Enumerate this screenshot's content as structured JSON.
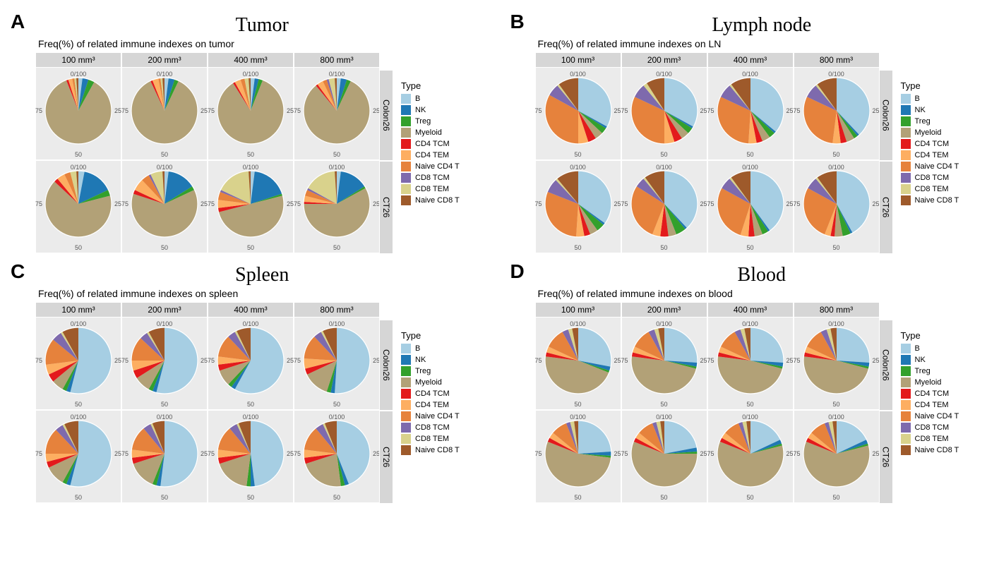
{
  "categories": [
    {
      "key": "B",
      "label": "B",
      "color": "#a6cee3"
    },
    {
      "key": "NK",
      "label": "NK",
      "color": "#1f78b4"
    },
    {
      "key": "Treg",
      "label": "Treg",
      "color": "#33a02c"
    },
    {
      "key": "Myeloid",
      "label": "Myeloid",
      "color": "#b2a177"
    },
    {
      "key": "CD4_TCM",
      "label": "CD4 TCM",
      "color": "#e31a1c"
    },
    {
      "key": "CD4_TEM",
      "label": "CD4 TEM",
      "color": "#fdae61"
    },
    {
      "key": "Naive_CD4_T",
      "label": "Naive CD4 T",
      "color": "#e6823c"
    },
    {
      "key": "CD8_TCM",
      "label": "CD8 TCM",
      "color": "#7e6aad"
    },
    {
      "key": "CD8_TEM",
      "label": "CD8 TEM",
      "color": "#d9d28c"
    },
    {
      "key": "Naive_CD8_T",
      "label": "Naive CD8 T",
      "color": "#9e5a2b"
    }
  ],
  "col_labels": [
    "100 mm³",
    "200 mm³",
    "400 mm³",
    "800 mm³"
  ],
  "row_labels": [
    "Colon26",
    "CT26"
  ],
  "axis_labels": {
    "top": "0/100",
    "right": "25",
    "bottom": "50",
    "left": "75"
  },
  "legend_title": "Type",
  "panels": [
    {
      "letter": "A",
      "title": "Tumor",
      "subtitle": "Freq(%) of related immune indexes on tumor",
      "rows": [
        [
          {
            "B": 2,
            "NK": 3,
            "Treg": 3,
            "Myeloid": 86,
            "CD4_TCM": 1,
            "CD4_TEM": 2,
            "Naive_CD4_T": 1,
            "CD8_TCM": 0,
            "CD8_TEM": 1,
            "Naive_CD8_T": 1
          },
          {
            "B": 2,
            "NK": 3,
            "Treg": 2,
            "Myeloid": 86,
            "CD4_TCM": 1,
            "CD4_TEM": 3,
            "Naive_CD4_T": 1,
            "CD8_TCM": 0,
            "CD8_TEM": 1,
            "Naive_CD8_T": 1
          },
          {
            "B": 2,
            "NK": 2,
            "Treg": 2,
            "Myeloid": 85,
            "CD4_TCM": 1,
            "CD4_TEM": 3,
            "Naive_CD4_T": 2,
            "CD8_TCM": 0,
            "CD8_TEM": 2,
            "Naive_CD8_T": 1
          },
          {
            "B": 2,
            "NK": 3,
            "Treg": 2,
            "Myeloid": 82,
            "CD4_TCM": 1,
            "CD4_TEM": 3,
            "Naive_CD4_T": 2,
            "CD8_TCM": 1,
            "CD8_TEM": 3,
            "Naive_CD8_T": 1
          }
        ],
        [
          {
            "B": 3,
            "NK": 15,
            "Treg": 3,
            "Myeloid": 66,
            "CD4_TCM": 2,
            "CD4_TEM": 4,
            "Naive_CD4_T": 3,
            "CD8_TCM": 0,
            "CD8_TEM": 3,
            "Naive_CD8_T": 1
          },
          {
            "B": 2,
            "NK": 14,
            "Treg": 2,
            "Myeloid": 62,
            "CD4_TCM": 2,
            "CD4_TEM": 6,
            "Naive_CD4_T": 4,
            "CD8_TCM": 1,
            "CD8_TEM": 6,
            "Naive_CD8_T": 1
          },
          {
            "B": 2,
            "NK": 18,
            "Treg": 1,
            "Myeloid": 50,
            "CD4_TCM": 2,
            "CD4_TEM": 4,
            "Naive_CD4_T": 4,
            "CD8_TCM": 1,
            "CD8_TEM": 17,
            "Naive_CD8_T": 1
          },
          {
            "B": 2,
            "NK": 14,
            "Treg": 1,
            "Myeloid": 58,
            "CD4_TCM": 1,
            "CD4_TEM": 3,
            "Naive_CD4_T": 3,
            "CD8_TCM": 1,
            "CD8_TEM": 16,
            "Naive_CD8_T": 1
          }
        ]
      ]
    },
    {
      "letter": "B",
      "title": "Lymph node",
      "subtitle": "Freq(%) of related immune indexes on LN",
      "rows": [
        [
          {
            "B": 33,
            "NK": 1,
            "Treg": 3,
            "Myeloid": 4,
            "CD4_TCM": 4,
            "CD4_TEM": 5,
            "Naive_CD4_T": 33,
            "CD8_TCM": 6,
            "CD8_TEM": 1,
            "Naive_CD8_T": 10
          },
          {
            "B": 33,
            "NK": 1,
            "Treg": 3,
            "Myeloid": 4,
            "CD4_TCM": 4,
            "CD4_TEM": 5,
            "Naive_CD4_T": 32,
            "CD8_TCM": 7,
            "CD8_TEM": 2,
            "Naive_CD8_T": 9
          },
          {
            "B": 36,
            "NK": 1,
            "Treg": 3,
            "Myeloid": 4,
            "CD4_TCM": 3,
            "CD4_TEM": 4,
            "Naive_CD4_T": 31,
            "CD8_TCM": 7,
            "CD8_TEM": 1,
            "Naive_CD8_T": 10
          },
          {
            "B": 38,
            "NK": 1,
            "Treg": 2,
            "Myeloid": 4,
            "CD4_TCM": 3,
            "CD4_TEM": 4,
            "Naive_CD4_T": 30,
            "CD8_TCM": 7,
            "CD8_TEM": 1,
            "Naive_CD8_T": 10
          }
        ],
        [
          {
            "B": 35,
            "NK": 1,
            "Treg": 4,
            "Myeloid": 4,
            "CD4_TCM": 3,
            "CD4_TEM": 4,
            "Naive_CD4_T": 30,
            "CD8_TCM": 7,
            "CD8_TEM": 1,
            "Naive_CD8_T": 11
          },
          {
            "B": 38,
            "NK": 1,
            "Treg": 5,
            "Myeloid": 4,
            "CD4_TCM": 4,
            "CD4_TEM": 4,
            "Naive_CD4_T": 28,
            "CD8_TCM": 5,
            "CD8_TEM": 1,
            "Naive_CD8_T": 10
          },
          {
            "B": 40,
            "NK": 1,
            "Treg": 3,
            "Myeloid": 4,
            "CD4_TCM": 3,
            "CD4_TEM": 4,
            "Naive_CD4_T": 28,
            "CD8_TCM": 6,
            "CD8_TEM": 1,
            "Naive_CD8_T": 10
          },
          {
            "B": 42,
            "NK": 1,
            "Treg": 4,
            "Myeloid": 4,
            "CD4_TCM": 2,
            "CD4_TEM": 3,
            "Naive_CD4_T": 27,
            "CD8_TCM": 6,
            "CD8_TEM": 1,
            "Naive_CD8_T": 10
          }
        ]
      ]
    },
    {
      "letter": "C",
      "title": "Spleen",
      "subtitle": "Freq(%) of related immune indexes on spleen",
      "rows": [
        [
          {
            "B": 54,
            "NK": 2,
            "Treg": 2,
            "Myeloid": 6,
            "CD4_TCM": 4,
            "CD4_TEM": 5,
            "Naive_CD4_T": 13,
            "CD8_TCM": 5,
            "CD8_TEM": 1,
            "Naive_CD8_T": 8
          },
          {
            "B": 54,
            "NK": 2,
            "Treg": 2,
            "Myeloid": 8,
            "CD4_TCM": 4,
            "CD4_TEM": 5,
            "Naive_CD4_T": 12,
            "CD8_TCM": 4,
            "CD8_TEM": 1,
            "Naive_CD8_T": 8
          },
          {
            "B": 58,
            "NK": 2,
            "Treg": 2,
            "Myeloid": 8,
            "CD4_TCM": 3,
            "CD4_TEM": 4,
            "Naive_CD4_T": 11,
            "CD8_TCM": 4,
            "CD8_TEM": 1,
            "Naive_CD8_T": 7
          },
          {
            "B": 51,
            "NK": 2,
            "Treg": 2,
            "Myeloid": 13,
            "CD4_TCM": 3,
            "CD4_TEM": 5,
            "Naive_CD4_T": 12,
            "CD8_TCM": 4,
            "CD8_TEM": 1,
            "Naive_CD8_T": 7
          }
        ],
        [
          {
            "B": 54,
            "NK": 2,
            "Treg": 2,
            "Myeloid": 10,
            "CD4_TCM": 3,
            "CD4_TEM": 4,
            "Naive_CD4_T": 13,
            "CD8_TCM": 4,
            "CD8_TEM": 1,
            "Naive_CD8_T": 7
          },
          {
            "B": 52,
            "NK": 2,
            "Treg": 2,
            "Myeloid": 14,
            "CD4_TCM": 3,
            "CD4_TEM": 4,
            "Naive_CD4_T": 12,
            "CD8_TCM": 4,
            "CD8_TEM": 1,
            "Naive_CD8_T": 6
          },
          {
            "B": 48,
            "NK": 2,
            "Treg": 2,
            "Myeloid": 18,
            "CD4_TCM": 3,
            "CD4_TEM": 4,
            "Naive_CD4_T": 12,
            "CD8_TCM": 4,
            "CD8_TEM": 1,
            "Naive_CD8_T": 6
          },
          {
            "B": 44,
            "NK": 2,
            "Treg": 2,
            "Myeloid": 22,
            "CD4_TCM": 3,
            "CD4_TEM": 4,
            "Naive_CD4_T": 12,
            "CD8_TCM": 4,
            "CD8_TEM": 1,
            "Naive_CD8_T": 6
          }
        ]
      ]
    },
    {
      "letter": "D",
      "title": "Blood",
      "subtitle": "Freq(%) of related immune indexes on blood",
      "rows": [
        [
          {
            "B": 28,
            "NK": 2,
            "Treg": 1,
            "Myeloid": 46,
            "CD4_TCM": 2,
            "CD4_TEM": 3,
            "Naive_CD4_T": 10,
            "CD8_TCM": 3,
            "CD8_TEM": 2,
            "Naive_CD8_T": 3
          },
          {
            "B": 26,
            "NK": 2,
            "Treg": 1,
            "Myeloid": 48,
            "CD4_TCM": 2,
            "CD4_TEM": 3,
            "Naive_CD4_T": 10,
            "CD8_TCM": 3,
            "CD8_TEM": 2,
            "Naive_CD8_T": 3
          },
          {
            "B": 26,
            "NK": 2,
            "Treg": 1,
            "Myeloid": 48,
            "CD4_TCM": 2,
            "CD4_TEM": 3,
            "Naive_CD4_T": 10,
            "CD8_TCM": 3,
            "CD8_TEM": 2,
            "Naive_CD8_T": 3
          },
          {
            "B": 26,
            "NK": 2,
            "Treg": 1,
            "Myeloid": 48,
            "CD4_TCM": 2,
            "CD4_TEM": 3,
            "Naive_CD4_T": 10,
            "CD8_TCM": 3,
            "CD8_TEM": 2,
            "Naive_CD8_T": 3
          }
        ],
        [
          {
            "B": 24,
            "NK": 2,
            "Treg": 1,
            "Myeloid": 54,
            "CD4_TCM": 2,
            "CD4_TEM": 3,
            "Naive_CD4_T": 8,
            "CD8_TCM": 2,
            "CD8_TEM": 2,
            "Naive_CD8_T": 2
          },
          {
            "B": 22,
            "NK": 2,
            "Treg": 1,
            "Myeloid": 56,
            "CD4_TCM": 2,
            "CD4_TEM": 3,
            "Naive_CD4_T": 8,
            "CD8_TCM": 2,
            "CD8_TEM": 2,
            "Naive_CD8_T": 2
          },
          {
            "B": 18,
            "NK": 2,
            "Treg": 1,
            "Myeloid": 60,
            "CD4_TCM": 2,
            "CD4_TEM": 3,
            "Naive_CD4_T": 8,
            "CD8_TCM": 2,
            "CD8_TEM": 2,
            "Naive_CD8_T": 2
          },
          {
            "B": 18,
            "NK": 2,
            "Treg": 1,
            "Myeloid": 60,
            "CD4_TCM": 2,
            "CD4_TEM": 3,
            "Naive_CD4_T": 8,
            "CD8_TCM": 2,
            "CD8_TEM": 2,
            "Naive_CD8_T": 2
          }
        ]
      ]
    }
  ]
}
